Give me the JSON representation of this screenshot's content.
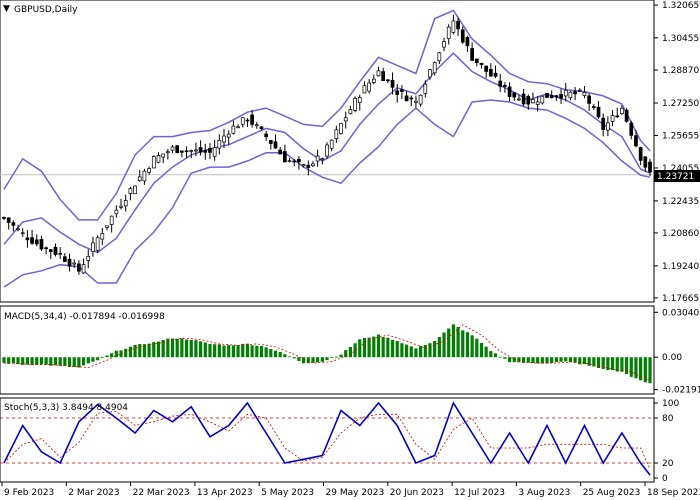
{
  "chart_data": [
    {
      "type": "candlestick",
      "title": "GBPUSD,Daily",
      "y_ticks": [
        "1.32065",
        "1.30455",
        "1.28870",
        "1.27250",
        "1.25655",
        "1.24055",
        "1.22435",
        "1.20860",
        "1.19240",
        "1.17665"
      ],
      "ylim": [
        1.1766,
        1.3207
      ],
      "current_price": "1.23721",
      "colors": {
        "bollinger": "#6b63d8",
        "candle": "#000000"
      },
      "bollinger": {
        "x": [
          0,
          4,
          8,
          12,
          16,
          20,
          24,
          28,
          32,
          36,
          40,
          44,
          48,
          52,
          56,
          60,
          64,
          68,
          72,
          76,
          80,
          84,
          88,
          92,
          96,
          100,
          104,
          108,
          112,
          116,
          120,
          124,
          128,
          132,
          136,
          138
        ],
        "mid": [
          1.203,
          1.214,
          1.216,
          1.209,
          1.203,
          1.199,
          1.206,
          1.22,
          1.233,
          1.241,
          1.247,
          1.25,
          1.252,
          1.256,
          1.26,
          1.258,
          1.25,
          1.244,
          1.249,
          1.262,
          1.272,
          1.28,
          1.277,
          1.288,
          1.297,
          1.288,
          1.283,
          1.279,
          1.274,
          1.277,
          1.274,
          1.269,
          1.262,
          1.256,
          1.24,
          1.238
        ],
        "upper": [
          1.23,
          1.245,
          1.239,
          1.225,
          1.215,
          1.215,
          1.228,
          1.247,
          1.256,
          1.256,
          1.258,
          1.259,
          1.263,
          1.268,
          1.27,
          1.266,
          1.262,
          1.261,
          1.27,
          1.283,
          1.295,
          1.291,
          1.287,
          1.314,
          1.318,
          1.304,
          1.296,
          1.287,
          1.283,
          1.282,
          1.279,
          1.278,
          1.276,
          1.272,
          1.254,
          1.249
        ],
        "lower": [
          1.182,
          1.188,
          1.19,
          1.193,
          1.192,
          1.184,
          1.184,
          1.2,
          1.209,
          1.221,
          1.238,
          1.241,
          1.241,
          1.244,
          1.248,
          1.248,
          1.241,
          1.236,
          1.233,
          1.243,
          1.251,
          1.262,
          1.27,
          1.262,
          1.256,
          1.273,
          1.274,
          1.273,
          1.27,
          1.269,
          1.265,
          1.26,
          1.253,
          1.244,
          1.237,
          1.236
        ]
      },
      "close_path": {
        "x": [
          0,
          4,
          8,
          12,
          16,
          20,
          24,
          28,
          32,
          36,
          40,
          44,
          48,
          52,
          56,
          60,
          64,
          68,
          72,
          76,
          80,
          84,
          88,
          92,
          96,
          100,
          104,
          108,
          112,
          116,
          120,
          124,
          128,
          132,
          136,
          138
        ],
        "y": [
          1.216,
          1.208,
          1.202,
          1.198,
          1.19,
          1.206,
          1.22,
          1.233,
          1.245,
          1.25,
          1.249,
          1.248,
          1.259,
          1.265,
          1.256,
          1.245,
          1.241,
          1.246,
          1.262,
          1.277,
          1.288,
          1.278,
          1.273,
          1.294,
          1.313,
          1.295,
          1.286,
          1.277,
          1.273,
          1.276,
          1.277,
          1.277,
          1.26,
          1.27,
          1.246,
          1.2372
        ]
      }
    },
    {
      "type": "histogram",
      "title": "MACD(5,34,4) -0.017894 -0.016998",
      "y_ticks": [
        "0.030401",
        "0.00",
        "-0.021914"
      ],
      "ylim": [
        -0.0222,
        0.0306
      ],
      "colors": {
        "bars": "#008000",
        "signal": "#cc0000"
      },
      "values": {
        "x": [
          0,
          4,
          8,
          12,
          16,
          20,
          24,
          28,
          32,
          36,
          40,
          44,
          48,
          52,
          56,
          60,
          64,
          68,
          72,
          76,
          80,
          84,
          88,
          92,
          96,
          100,
          104,
          108,
          112,
          116,
          120,
          124,
          128,
          132,
          136,
          138
        ],
        "y": [
          -0.004,
          -0.005,
          -0.005,
          -0.006,
          -0.007,
          -0.002,
          0.004,
          0.008,
          0.01,
          0.013,
          0.012,
          0.009,
          0.008,
          0.009,
          0.007,
          0.002,
          -0.004,
          -0.003,
          0.002,
          0.012,
          0.015,
          0.011,
          0.006,
          0.011,
          0.022,
          0.015,
          0.004,
          -0.003,
          -0.004,
          -0.004,
          -0.003,
          -0.005,
          -0.008,
          -0.01,
          -0.016,
          -0.0179
        ]
      }
    },
    {
      "type": "line",
      "title": "Stoch(5,3,3) 3.8494 8.4904",
      "y_ticks": [
        "100",
        "80",
        "20",
        "0"
      ],
      "ylim": [
        0,
        100
      ],
      "colors": {
        "main": "#0000cc",
        "signal": "#cc0000"
      },
      "values": {
        "x": [
          0,
          4,
          8,
          12,
          16,
          20,
          24,
          28,
          32,
          36,
          40,
          44,
          48,
          52,
          56,
          60,
          64,
          68,
          72,
          76,
          80,
          84,
          88,
          92,
          96,
          100,
          104,
          108,
          112,
          116,
          120,
          124,
          128,
          132,
          136,
          138
        ],
        "y": [
          20,
          70,
          35,
          20,
          75,
          98,
          80,
          60,
          90,
          75,
          95,
          55,
          70,
          100,
          60,
          20,
          25,
          30,
          90,
          70,
          100,
          70,
          20,
          30,
          100,
          60,
          20,
          60,
          20,
          70,
          20,
          70,
          20,
          60,
          20,
          4
        ]
      }
    }
  ],
  "x_labels": [
    "9 Feb 2023",
    "2 Mar 2023",
    "22 Mar 2023",
    "13 Apr 2023",
    "5 May 2023",
    "29 May 2023",
    "20 Jun 2023",
    "12 Jul 2023",
    "3 Aug 2023",
    "25 Aug 2023",
    "18 Sep 2023"
  ]
}
